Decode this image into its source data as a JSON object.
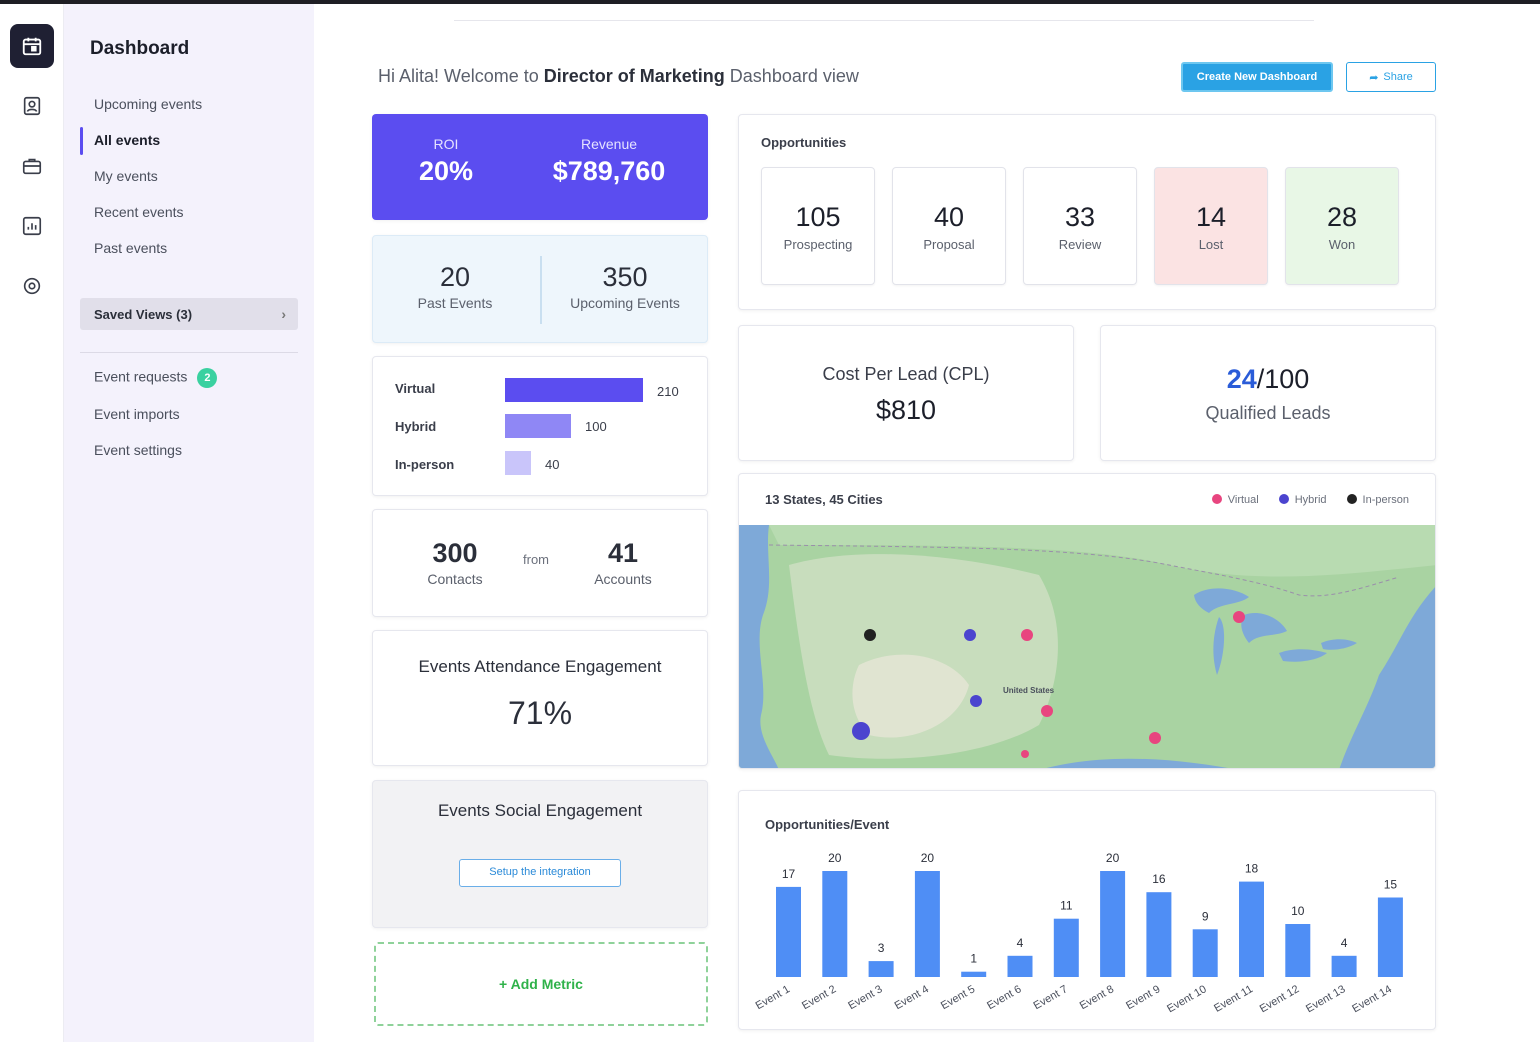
{
  "sidebar": {
    "title": "Dashboard",
    "nav": [
      {
        "label": "Upcoming events"
      },
      {
        "label": "All events",
        "active": true
      },
      {
        "label": "My events"
      },
      {
        "label": "Recent events"
      },
      {
        "label": "Past events"
      }
    ],
    "saved_views": "Saved Views (3)",
    "secondary": [
      {
        "label": "Event requests",
        "badge": "2"
      },
      {
        "label": "Event imports"
      },
      {
        "label": "Event settings"
      }
    ]
  },
  "rail": {
    "icons": [
      "calendar-icon",
      "contact-icon",
      "briefcase-icon",
      "chart-icon",
      "settings-icon"
    ]
  },
  "header": {
    "welcome_pre": "Hi Alita! Welcome to",
    "welcome_role": "Director of Marketing",
    "welcome_post": "Dashboard view",
    "create_label": "Create New Dashboard",
    "share_label": "Share"
  },
  "roi": {
    "roi_label": "ROI",
    "roi_value": "20%",
    "revenue_label": "Revenue",
    "revenue_value": "$789,760"
  },
  "events": {
    "past_value": "20",
    "past_label": "Past Events",
    "upcoming_value": "350",
    "upcoming_label": "Upcoming Events"
  },
  "event_types": [
    {
      "label": "Virtual",
      "value": 210,
      "color": "#5b4df0"
    },
    {
      "label": "Hybrid",
      "value": 100,
      "color": "#8f87f5"
    },
    {
      "label": "In-person",
      "value": 40,
      "color": "#c9c5fa"
    }
  ],
  "contacts": {
    "contacts_value": "300",
    "contacts_label": "Contacts",
    "from_label": "from",
    "accounts_value": "41",
    "accounts_label": "Accounts"
  },
  "attendance": {
    "title": "Events Attendance Engagement",
    "value": "71%"
  },
  "social": {
    "title": "Events Social Engagement",
    "setup_label": "Setup the integration"
  },
  "add_metric": "+ Add Metric",
  "opportunities": {
    "title": "Opportunities",
    "stages": [
      {
        "value": "105",
        "label": "Prospecting",
        "bg": "#ffffff"
      },
      {
        "value": "40",
        "label": "Proposal",
        "bg": "#ffffff"
      },
      {
        "value": "33",
        "label": "Review",
        "bg": "#ffffff"
      },
      {
        "value": "14",
        "label": "Lost",
        "bg": "#fbe3e3"
      },
      {
        "value": "28",
        "label": "Won",
        "bg": "#e8f7e6"
      }
    ]
  },
  "cpl": {
    "title": "Cost Per Lead (CPL)",
    "value": "$810"
  },
  "leads": {
    "qualified": "24",
    "total": "/100",
    "label": "Qualified Leads"
  },
  "map": {
    "title": "13 States, 45 Cities",
    "legend": [
      {
        "label": "Virtual",
        "color": "#e8457f"
      },
      {
        "label": "Hybrid",
        "color": "#4b44cf"
      },
      {
        "label": "In-person",
        "color": "#222222"
      }
    ],
    "country_label": "United States"
  },
  "chart_data": {
    "type": "bar",
    "title": "Opportunities/Event",
    "categories": [
      "Event 1",
      "Event 2",
      "Event 3",
      "Event 4",
      "Event 5",
      "Event 6",
      "Event 7",
      "Event 8",
      "Event 9",
      "Event 10",
      "Event 11",
      "Event 12",
      "Event 13",
      "Event 14"
    ],
    "values": [
      17,
      20,
      3,
      20,
      1,
      4,
      11,
      20,
      16,
      9,
      18,
      10,
      4,
      15
    ],
    "ylim": [
      0,
      20
    ],
    "color": "#4f8ef5",
    "grid": false
  }
}
